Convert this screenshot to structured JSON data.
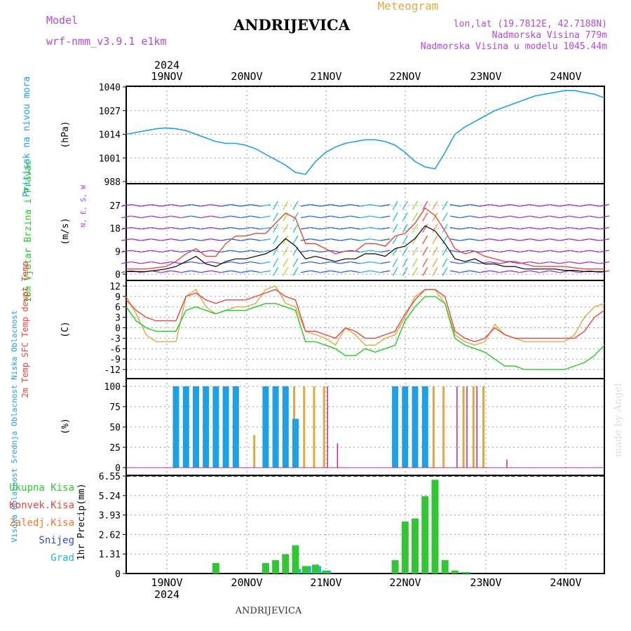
{
  "header": {
    "model_label": "Model",
    "model_name": "wrf-nmm_v3.9.1 e1km",
    "title": "ANDRIJEVICA",
    "product": "Meteogram",
    "lonlat": "lon,lat (19.7812E, 42.7188N)",
    "elevation": "Nadmorska Visina 779m",
    "model_elevation": "Nadmorska Visina u modelu 1045.44m",
    "watermark": "made by Angel",
    "footer_title": "ANDRIJEVICA",
    "year": "2024"
  },
  "colors": {
    "pressure": "#1ea0e6",
    "temp2m": "#e8463c",
    "sfc_temp": "#e0a840",
    "dewpt": "#22cc22",
    "wind_speed": "#000000",
    "wind_gust": "#e8463c",
    "cloud_high": "#1ea0e6",
    "cloud_mid": "#e0a840",
    "cloud_low": "#cc2288",
    "precip_total": "#33c633",
    "precip_conv": "#e8463c",
    "precip_snow": "#3344ee",
    "precip_grad": "#22bbbb",
    "model_label": "#b048d8"
  },
  "chart_data": {
    "type": "line",
    "x_start": "2024-11-18T12:00",
    "x_end": "2024-11-24T12:00",
    "x_step_hours": 3,
    "time_ticks": [
      "19NOV",
      "20NOV",
      "21NOV",
      "22NOV",
      "23NOV",
      "24NOV"
    ],
    "panels": [
      {
        "id": "pressure",
        "ylabel": "Pritisak na nivou mora",
        "unit": "(hPa)",
        "yticks": [
          988,
          1001,
          1014,
          1027,
          1040
        ],
        "ylim": [
          988,
          1040
        ],
        "series": [
          {
            "values": [
              1014,
              1015,
              1016,
              1017,
              1017.5,
              1017,
              1016,
              1014,
              1012,
              1010,
              1009,
              1009,
              1008,
              1006,
              1003,
              1000,
              997,
              993,
              992,
              999,
              1004,
              1007,
              1009,
              1010,
              1011,
              1011,
              1010,
              1008,
              1004,
              999,
              996,
              995,
              1004,
              1014,
              1018,
              1021,
              1024,
              1027,
              1029,
              1031,
              1033,
              1035,
              1036,
              1037,
              1038,
              1038,
              1037,
              1036,
              1034
            ]
          }
        ]
      },
      {
        "id": "wind",
        "ylabel": "10m Vjetar Brzina i Pravac",
        "unit": "(m/s)",
        "yticks": [
          0,
          9,
          18,
          27
        ],
        "ylim": [
          0,
          35
        ],
        "compass": "N, E, S, W",
        "series": [
          {
            "name": "speed",
            "values": [
              1,
              1,
              1,
              1.5,
              2,
              3,
              5,
              7,
              4,
              3,
              5,
              6,
              6,
              7,
              8,
              10,
              14,
              11,
              6,
              7,
              6,
              5,
              6,
              6,
              8,
              8,
              7,
              10,
              11,
              14,
              19,
              17,
              12,
              6,
              5,
              6,
              4,
              4,
              3,
              3,
              2,
              2,
              2,
              2,
              1.5,
              1.5,
              1,
              1,
              1
            ]
          },
          {
            "name": "gust",
            "values": [
              2,
              2,
              2,
              2.5,
              3,
              5,
              8,
              10,
              7,
              7,
              12,
              15,
              15,
              16,
              16,
              20,
              24,
              22,
              12,
              12,
              10,
              8,
              9,
              9,
              12,
              12,
              11,
              15,
              16,
              20,
              26,
              23,
              17,
              10,
              8,
              9,
              7,
              6,
              5,
              5,
              4,
              3,
              3,
              3,
              3,
              2.5,
              2,
              2,
              2
            ]
          }
        ]
      },
      {
        "id": "temp",
        "ylabel": "2m Temp SFC Temp dewpt Temp",
        "unit": "(C)",
        "yticks": [
          -12,
          -9,
          -6,
          -3,
          0,
          3,
          6,
          9,
          12
        ],
        "ylim": [
          -14,
          13
        ],
        "series": [
          {
            "name": "2m Temp",
            "values": [
              8,
              5,
              3,
              2,
              2,
              2,
              9,
              10,
              8,
              7,
              8,
              8,
              8,
              9,
              10,
              11,
              9,
              8,
              -1,
              -1,
              -2,
              -3,
              0,
              -1,
              -3,
              -3,
              -2,
              -1,
              4,
              8,
              11,
              11,
              9,
              -1,
              -3,
              -4,
              -3,
              0,
              -2,
              -3,
              -3,
              -3,
              -3,
              -3,
              -3,
              -3,
              -1,
              3,
              5
            ]
          },
          {
            "name": "SFC Temp",
            "values": [
              9,
              4,
              -2,
              -4,
              -4,
              -4,
              9,
              11,
              6,
              4,
              5,
              6,
              6,
              7,
              11,
              12,
              7,
              6,
              -1,
              -2,
              -3,
              -5,
              0,
              -2,
              -5,
              -5,
              -3,
              -2,
              3,
              9,
              11,
              11,
              7,
              -2,
              -4,
              -5,
              -4,
              1,
              -2,
              -3,
              -4,
              -4,
              -4,
              -4,
              -4,
              -2,
              3,
              6,
              7
            ]
          },
          {
            "name": "dewpt Temp",
            "values": [
              6,
              2,
              0,
              -1,
              -1,
              -1,
              5,
              6,
              5,
              4,
              5,
              5,
              5,
              6,
              7,
              7,
              6,
              5,
              -4,
              -4,
              -5,
              -6,
              -8,
              -8,
              -6,
              -7,
              -6,
              -5,
              2,
              6,
              9,
              9,
              7,
              -3,
              -5,
              -6,
              -7,
              -9,
              -11,
              -11,
              -12,
              -12,
              -12,
              -12,
              -12,
              -11,
              -10,
              -8,
              -5
            ]
          }
        ]
      },
      {
        "id": "cloud",
        "ylabel": "Visoka Oblacnost Srednja Oblacnost Niska Oblacnost",
        "unit": "(%)",
        "yticks": [
          0,
          25,
          50,
          75,
          100
        ],
        "ylim": [
          0,
          100
        ],
        "series": [
          {
            "name": "Visoka Oblacnost",
            "values": [
              0,
              0,
              0,
              0,
              0,
              100,
              100,
              100,
              100,
              100,
              100,
              100,
              0,
              0,
              100,
              100,
              100,
              60,
              0,
              0,
              0,
              0,
              0,
              0,
              0,
              0,
              0,
              100,
              100,
              100,
              100,
              0,
              0,
              0,
              0,
              0,
              0,
              0,
              0,
              0,
              0,
              0,
              0,
              0,
              0,
              0,
              0,
              0,
              0
            ]
          },
          {
            "name": "Srednja Oblacnost",
            "values": [
              0,
              0,
              0,
              0,
              0,
              60,
              100,
              100,
              100,
              100,
              90,
              100,
              0,
              40,
              100,
              100,
              100,
              100,
              100,
              100,
              100,
              0,
              0,
              0,
              0,
              0,
              0,
              100,
              100,
              80,
              100,
              100,
              100,
              0,
              100,
              100,
              100,
              0,
              0,
              0,
              0,
              0,
              0,
              0,
              0,
              0,
              0,
              0,
              0
            ]
          },
          {
            "name": "Niska Oblacnost",
            "values": [
              0,
              0,
              0,
              0,
              0,
              0,
              0,
              0,
              0,
              0,
              0,
              0,
              0,
              0,
              0,
              0,
              0,
              0,
              0,
              0,
              100,
              30,
              0,
              0,
              0,
              0,
              0,
              0,
              0,
              0,
              0,
              0,
              0,
              100,
              100,
              100,
              0,
              0,
              10,
              0,
              0,
              0,
              0,
              0,
              0,
              0,
              0,
              0,
              0
            ]
          }
        ]
      },
      {
        "id": "precip",
        "ylabel": "1hr Precip",
        "unit": "(mm)",
        "yticks": [
          0,
          1.31,
          2.62,
          3.93,
          5.24,
          6.55
        ],
        "ylim": [
          0,
          6.55
        ],
        "legend": [
          "Ukupna Kisa",
          "Konvek.Kisa",
          "Zaledj.Kisa",
          "Snijeg",
          "Grad"
        ],
        "series": [
          {
            "name": "Ukupna Kisa",
            "values": [
              0,
              0,
              0,
              0,
              0,
              0,
              0,
              0,
              0,
              0.7,
              0,
              0,
              0,
              0,
              0.7,
              0.9,
              1.3,
              1.9,
              0.5,
              0.6,
              0.2,
              0,
              0,
              0,
              0,
              0,
              0,
              0.9,
              3.5,
              3.7,
              5.2,
              6.3,
              0.9,
              0.2,
              0.1,
              0,
              0,
              0,
              0,
              0,
              0,
              0,
              0,
              0,
              0,
              0,
              0,
              0,
              0
            ]
          },
          {
            "name": "Grad",
            "values": [
              0,
              0,
              0,
              0,
              0,
              0,
              0,
              0,
              0,
              0,
              0,
              0,
              0,
              0,
              0,
              0,
              0,
              0.3,
              0.5,
              0.5,
              0.2,
              0,
              0,
              0,
              0,
              0,
              0,
              0,
              0,
              0,
              0,
              0,
              0,
              0,
              0.1,
              0,
              0,
              0,
              0,
              0,
              0,
              0,
              0,
              0,
              0,
              0,
              0,
              0,
              0
            ]
          }
        ]
      }
    ]
  }
}
